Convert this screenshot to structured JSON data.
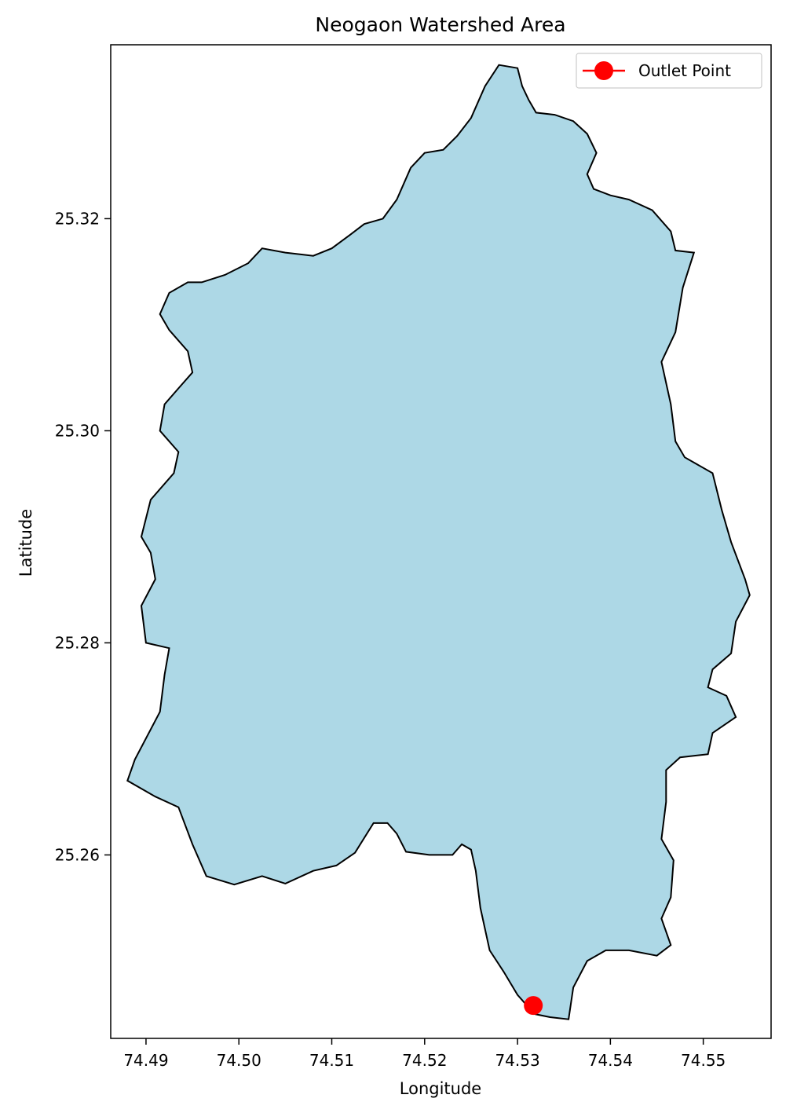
{
  "chart_data": {
    "type": "map",
    "title": "Neogaon Watershed Area",
    "xlabel": "Longitude",
    "ylabel": "Latitude",
    "xlim": [
      74.4862,
      74.5573
    ],
    "ylim": [
      25.2427,
      25.3364
    ],
    "x_ticks": [
      74.49,
      74.5,
      74.51,
      74.52,
      74.53,
      74.54,
      74.55
    ],
    "x_tick_labels": [
      "74.49",
      "74.50",
      "74.51",
      "74.52",
      "74.53",
      "74.54",
      "74.55"
    ],
    "y_ticks": [
      25.26,
      25.28,
      25.3,
      25.32
    ],
    "y_tick_labels": [
      "25.26",
      "25.28",
      "25.30",
      "25.32"
    ],
    "grid": false,
    "legend_position": "top-right",
    "legend": [
      {
        "label": "Outlet Point",
        "marker": "circle",
        "color": "#ff0000"
      }
    ],
    "watershed": {
      "fill_color": "#add8e6",
      "edge_color": "#000000",
      "boundary": [
        [
          74.528,
          25.3345
        ],
        [
          74.53,
          25.3342
        ],
        [
          74.5305,
          25.3325
        ],
        [
          74.5312,
          25.3312
        ],
        [
          74.532,
          25.33
        ],
        [
          74.534,
          25.3298
        ],
        [
          74.536,
          25.3292
        ],
        [
          74.5375,
          25.328
        ],
        [
          74.5385,
          25.3262
        ],
        [
          74.5375,
          25.3242
        ],
        [
          74.5382,
          25.3228
        ],
        [
          74.54,
          25.3222
        ],
        [
          74.542,
          25.3218
        ],
        [
          74.5445,
          25.3208
        ],
        [
          74.5465,
          25.3188
        ],
        [
          74.547,
          25.317
        ],
        [
          74.549,
          25.3168
        ],
        [
          74.5478,
          25.3135
        ],
        [
          74.547,
          25.3093
        ],
        [
          74.5455,
          25.3065
        ],
        [
          74.5465,
          25.3025
        ],
        [
          74.547,
          25.299
        ],
        [
          74.548,
          25.2975
        ],
        [
          74.551,
          25.296
        ],
        [
          74.552,
          25.2925
        ],
        [
          74.553,
          25.2895
        ],
        [
          74.5545,
          25.286
        ],
        [
          74.555,
          25.2845
        ],
        [
          74.5535,
          25.282
        ],
        [
          74.553,
          25.279
        ],
        [
          74.551,
          25.2775
        ],
        [
          74.5505,
          25.2758
        ],
        [
          74.5525,
          25.275
        ],
        [
          74.5535,
          25.273
        ],
        [
          74.551,
          25.2715
        ],
        [
          74.5505,
          25.2695
        ],
        [
          74.5475,
          25.2692
        ],
        [
          74.546,
          25.268
        ],
        [
          74.546,
          25.265
        ],
        [
          74.5455,
          25.2615
        ],
        [
          74.5468,
          25.2595
        ],
        [
          74.5465,
          25.256
        ],
        [
          74.5455,
          25.254
        ],
        [
          74.5465,
          25.2515
        ],
        [
          74.545,
          25.2505
        ],
        [
          74.542,
          25.251
        ],
        [
          74.5395,
          25.251
        ],
        [
          74.5375,
          25.25
        ],
        [
          74.536,
          25.2475
        ],
        [
          74.5355,
          25.2445
        ],
        [
          74.5335,
          25.2447
        ],
        [
          74.5318,
          25.245
        ],
        [
          74.53,
          25.2468
        ],
        [
          74.5285,
          25.249
        ],
        [
          74.527,
          25.251
        ],
        [
          74.526,
          25.255
        ],
        [
          74.5255,
          25.2585
        ],
        [
          74.525,
          25.2605
        ],
        [
          74.524,
          25.261
        ],
        [
          74.523,
          25.26
        ],
        [
          74.5205,
          25.26
        ],
        [
          74.518,
          25.2603
        ],
        [
          74.517,
          25.262
        ],
        [
          74.516,
          25.263
        ],
        [
          74.5145,
          25.263
        ],
        [
          74.5125,
          25.2602
        ],
        [
          74.5105,
          25.259
        ],
        [
          74.508,
          25.2585
        ],
        [
          74.505,
          25.2573
        ],
        [
          74.5025,
          25.258
        ],
        [
          74.4995,
          25.2572
        ],
        [
          74.4965,
          25.258
        ],
        [
          74.495,
          25.261
        ],
        [
          74.4935,
          25.2645
        ],
        [
          74.491,
          25.2655
        ],
        [
          74.488,
          25.267
        ],
        [
          74.4888,
          25.269
        ],
        [
          74.4915,
          25.2735
        ],
        [
          74.492,
          25.277
        ],
        [
          74.4925,
          25.2795
        ],
        [
          74.49,
          25.28
        ],
        [
          74.4895,
          25.2835
        ],
        [
          74.491,
          25.286
        ],
        [
          74.4905,
          25.2885
        ],
        [
          74.4895,
          25.29
        ],
        [
          74.4905,
          25.2935
        ],
        [
          74.493,
          25.296
        ],
        [
          74.4935,
          25.298
        ],
        [
          74.4915,
          25.3
        ],
        [
          74.492,
          25.3025
        ],
        [
          74.4935,
          25.304
        ],
        [
          74.495,
          25.3055
        ],
        [
          74.4945,
          25.3075
        ],
        [
          74.4925,
          25.3095
        ],
        [
          74.4915,
          25.311
        ],
        [
          74.4925,
          25.313
        ],
        [
          74.4945,
          25.314
        ],
        [
          74.496,
          25.314
        ],
        [
          74.4985,
          25.3147
        ],
        [
          74.501,
          25.3158
        ],
        [
          74.5025,
          25.3172
        ],
        [
          74.505,
          25.3168
        ],
        [
          74.508,
          25.3165
        ],
        [
          74.51,
          25.3172
        ],
        [
          74.512,
          25.3185
        ],
        [
          74.5135,
          25.3195
        ],
        [
          74.5155,
          25.32
        ],
        [
          74.517,
          25.3218
        ],
        [
          74.5185,
          25.3248
        ],
        [
          74.52,
          25.3262
        ],
        [
          74.522,
          25.3265
        ],
        [
          74.5235,
          25.3278
        ],
        [
          74.525,
          25.3295
        ],
        [
          74.5265,
          25.3325
        ]
      ]
    },
    "outlet_point": {
      "lon": 74.5317,
      "lat": 25.2458,
      "color": "#ff0000"
    }
  }
}
